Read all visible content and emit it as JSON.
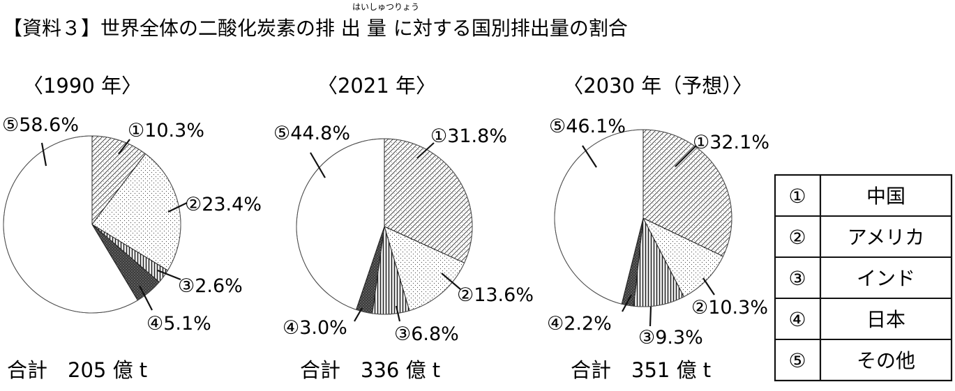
{
  "title": {
    "before": "【資料３】世界全体の二酸化炭素の",
    "main": "排 出 量",
    "ruby": "はいしゅつりょう",
    "after": "に対する国別排出量の割合"
  },
  "colors": {
    "ink": "#111111",
    "background": "#ffffff"
  },
  "chart_data": [
    {
      "type": "pie",
      "title": "〈1990 年〉",
      "total_label": "合計　205 億 t",
      "slices": [
        {
          "key": "1",
          "label": "①10.3%",
          "value": 10.3
        },
        {
          "key": "2",
          "label": "②23.4%",
          "value": 23.4
        },
        {
          "key": "3",
          "label": "③2.6%",
          "value": 2.6
        },
        {
          "key": "4",
          "label": "④5.1%",
          "value": 5.1
        },
        {
          "key": "5",
          "label": "⑤58.6%",
          "value": 58.6
        }
      ]
    },
    {
      "type": "pie",
      "title": "〈2021 年〉",
      "total_label": "合計　336 億 t",
      "slices": [
        {
          "key": "1",
          "label": "①31.8%",
          "value": 31.8
        },
        {
          "key": "2",
          "label": "②13.6%",
          "value": 13.6
        },
        {
          "key": "3",
          "label": "③6.8%",
          "value": 6.8
        },
        {
          "key": "4",
          "label": "④3.0%",
          "value": 3.0
        },
        {
          "key": "5",
          "label": "⑤44.8%",
          "value": 44.8
        }
      ]
    },
    {
      "type": "pie",
      "title": "〈2030 年（予想）〉",
      "total_label": "合計　351 億 t",
      "slices": [
        {
          "key": "1",
          "label": "①32.1%",
          "value": 32.1
        },
        {
          "key": "2",
          "label": "②10.3%",
          "value": 10.3
        },
        {
          "key": "3",
          "label": "③9.3%",
          "value": 9.3
        },
        {
          "key": "4",
          "label": "④2.2%",
          "value": 2.2
        },
        {
          "key": "5",
          "label": "⑤46.1%",
          "value": 46.1
        }
      ]
    }
  ],
  "legend": [
    {
      "key": "①",
      "name": "中国"
    },
    {
      "key": "②",
      "name": "アメリカ"
    },
    {
      "key": "③",
      "name": "インド"
    },
    {
      "key": "④",
      "name": "日本"
    },
    {
      "key": "⑤",
      "name": "その他"
    }
  ]
}
